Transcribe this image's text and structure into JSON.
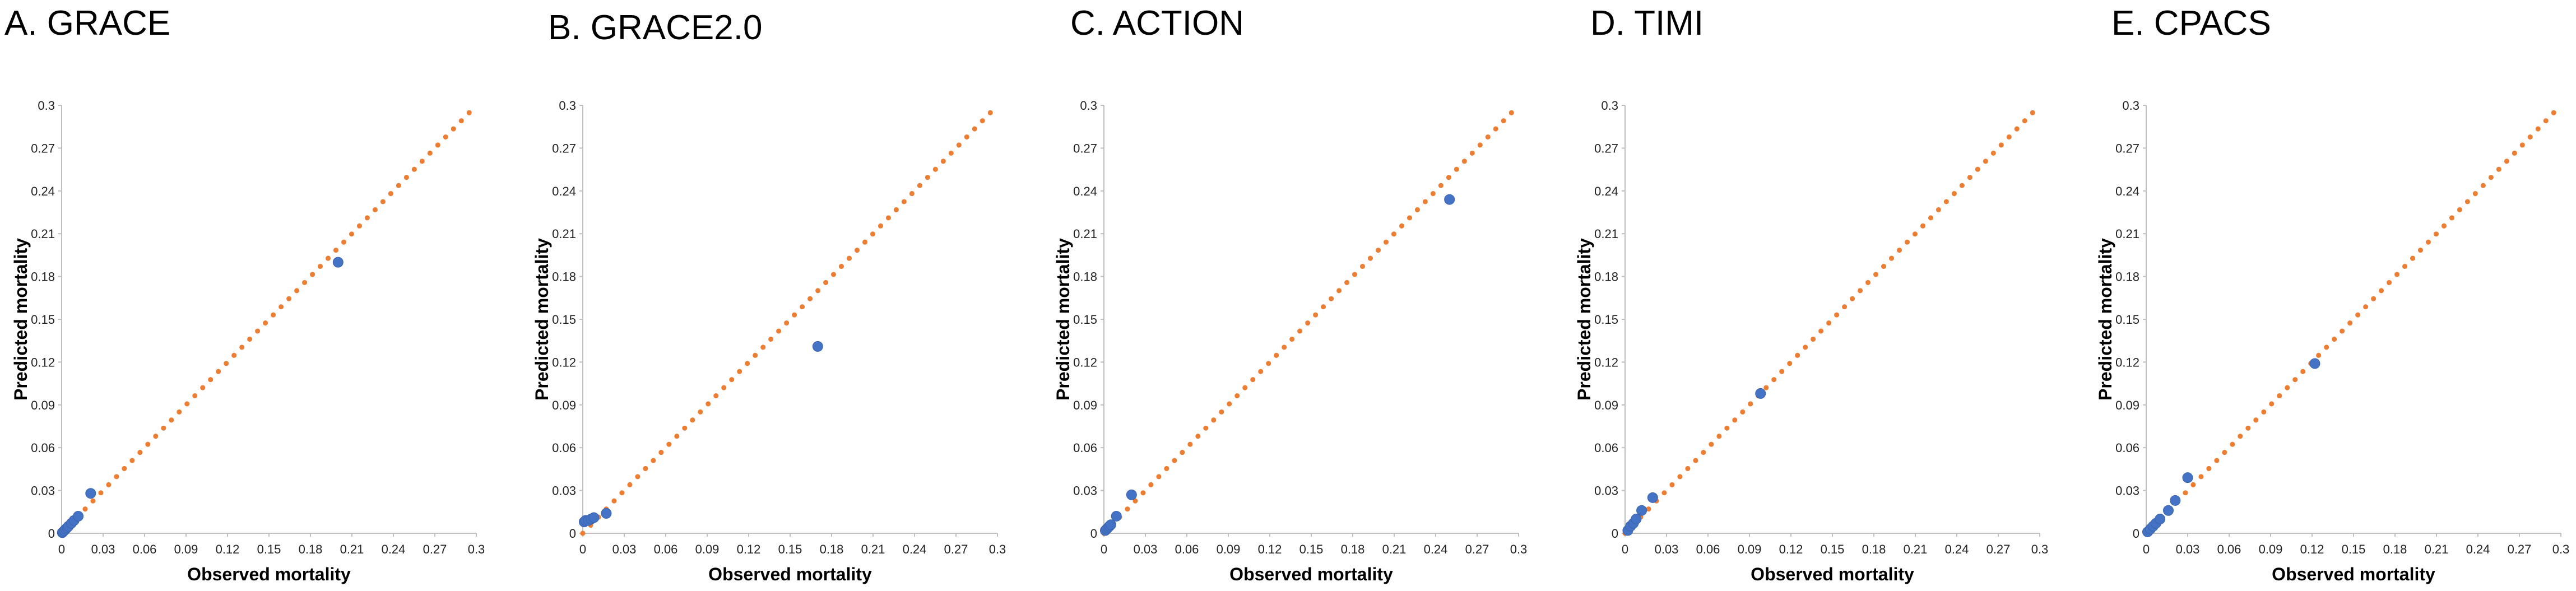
{
  "colors": {
    "points": "#4472C4",
    "reference_line": "#ED7D31",
    "axis": "#bfbfbf",
    "text": "#000000"
  },
  "chart_data": [
    {
      "type": "scatter",
      "title": "A. GRACE",
      "xlabel": "Observed mortality",
      "ylabel": "Predicted mortality",
      "xlim": [
        0,
        0.3
      ],
      "ylim": [
        0,
        0.3
      ],
      "xticks": [
        "0",
        "0.03",
        "0.06",
        "0.09",
        "0.12",
        "0.15",
        "0.18",
        "0.21",
        "0.24",
        "0.27",
        "0.3"
      ],
      "yticks": [
        "0",
        "0.03",
        "0.06",
        "0.09",
        "0.12",
        "0.15",
        "0.18",
        "0.21",
        "0.24",
        "0.27",
        "0.3"
      ],
      "points": [
        [
          0.0005,
          0.0005
        ],
        [
          0.001,
          0.001
        ],
        [
          0.002,
          0.002
        ],
        [
          0.003,
          0.003
        ],
        [
          0.004,
          0.004
        ],
        [
          0.005,
          0.005
        ],
        [
          0.007,
          0.007
        ],
        [
          0.009,
          0.009
        ],
        [
          0.012,
          0.012
        ],
        [
          0.021,
          0.028
        ],
        [
          0.2,
          0.19
        ]
      ],
      "reference_line": [
        [
          0,
          0
        ],
        [
          0.3,
          0.3
        ]
      ],
      "grid": false
    },
    {
      "type": "scatter",
      "title": "B. GRACE2.0",
      "xlabel": "Observed mortality",
      "ylabel": "Predicted mortality",
      "xlim": [
        0,
        0.3
      ],
      "ylim": [
        0,
        0.3
      ],
      "xticks": [
        "0",
        "0.03",
        "0.06",
        "0.09",
        "0.12",
        "0.15",
        "0.18",
        "0.21",
        "0.24",
        "0.27",
        "0.3"
      ],
      "yticks": [
        "0",
        "0.03",
        "0.06",
        "0.09",
        "0.12",
        "0.15",
        "0.18",
        "0.21",
        "0.24",
        "0.27",
        "0.3"
      ],
      "points": [
        [
          0.001,
          0.008
        ],
        [
          0.002,
          0.009
        ],
        [
          0.004,
          0.009
        ],
        [
          0.006,
          0.01
        ],
        [
          0.008,
          0.011
        ],
        [
          0.017,
          0.014
        ],
        [
          0.17,
          0.131
        ]
      ],
      "reference_line": [
        [
          0,
          0
        ],
        [
          0.3,
          0.3
        ]
      ],
      "grid": false
    },
    {
      "type": "scatter",
      "title": "C. ACTION",
      "xlabel": "Observed mortality",
      "ylabel": "Predicted mortality",
      "xlim": [
        0,
        0.3
      ],
      "ylim": [
        0,
        0.3
      ],
      "xticks": [
        "0",
        "0.03",
        "0.06",
        "0.09",
        "0.12",
        "0.15",
        "0.18",
        "0.21",
        "0.24",
        "0.27",
        "0.3"
      ],
      "yticks": [
        "0",
        "0.03",
        "0.06",
        "0.09",
        "0.12",
        "0.15",
        "0.18",
        "0.21",
        "0.24",
        "0.27",
        "0.3"
      ],
      "points": [
        [
          0.001,
          0.002
        ],
        [
          0.002,
          0.003
        ],
        [
          0.003,
          0.004
        ],
        [
          0.004,
          0.005
        ],
        [
          0.005,
          0.006
        ],
        [
          0.009,
          0.012
        ],
        [
          0.02,
          0.027
        ],
        [
          0.25,
          0.234
        ]
      ],
      "reference_line": [
        [
          0,
          0
        ],
        [
          0.3,
          0.3
        ]
      ],
      "grid": false
    },
    {
      "type": "scatter",
      "title": "D. TIMI",
      "xlabel": "Observed mortality",
      "ylabel": "Predicted mortality",
      "xlim": [
        0,
        0.3
      ],
      "ylim": [
        0,
        0.3
      ],
      "xticks": [
        "0",
        "0.03",
        "0.06",
        "0.09",
        "0.12",
        "0.15",
        "0.18",
        "0.21",
        "0.24",
        "0.27",
        "0.3"
      ],
      "yticks": [
        "0",
        "0.03",
        "0.06",
        "0.09",
        "0.12",
        "0.15",
        "0.18",
        "0.21",
        "0.24",
        "0.27",
        "0.3"
      ],
      "points": [
        [
          0.002,
          0.002
        ],
        [
          0.004,
          0.005
        ],
        [
          0.006,
          0.007
        ],
        [
          0.008,
          0.01
        ],
        [
          0.012,
          0.016
        ],
        [
          0.02,
          0.025
        ],
        [
          0.098,
          0.098
        ]
      ],
      "reference_line": [
        [
          0,
          0
        ],
        [
          0.3,
          0.3
        ]
      ],
      "grid": false
    },
    {
      "type": "scatter",
      "title": "E. CPACS",
      "xlabel": "Observed mortality",
      "ylabel": "Predicted mortality",
      "xlim": [
        0,
        0.3
      ],
      "ylim": [
        0,
        0.3
      ],
      "xticks": [
        "0",
        "0.03",
        "0.06",
        "0.09",
        "0.12",
        "0.15",
        "0.18",
        "0.21",
        "0.24",
        "0.27",
        "0.3"
      ],
      "yticks": [
        "0",
        "0.03",
        "0.06",
        "0.09",
        "0.12",
        "0.15",
        "0.18",
        "0.21",
        "0.24",
        "0.27",
        "0.3"
      ],
      "points": [
        [
          0.001,
          0.001
        ],
        [
          0.003,
          0.003
        ],
        [
          0.005,
          0.005
        ],
        [
          0.007,
          0.007
        ],
        [
          0.01,
          0.01
        ],
        [
          0.016,
          0.016
        ],
        [
          0.021,
          0.023
        ],
        [
          0.03,
          0.039
        ],
        [
          0.122,
          0.119
        ]
      ],
      "reference_line": [
        [
          0,
          0
        ],
        [
          0.3,
          0.3
        ]
      ],
      "grid": false
    }
  ]
}
